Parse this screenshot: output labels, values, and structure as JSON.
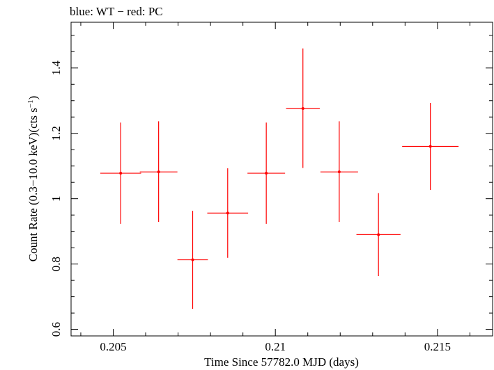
{
  "chart_data": {
    "type": "scatter",
    "title": "blue: WT − red: PC",
    "xlabel": "Time Since 57782.0 MJD (days)",
    "ylabel_main": "Count Rate (0.3−10.0 keV)(cts s",
    "ylabel_sup": "−1",
    "ylabel_close": ")",
    "xlim": [
      0.2037,
      0.2167
    ],
    "ylim": [
      0.58,
      1.54
    ],
    "xticks": [
      0.205,
      0.21,
      0.215
    ],
    "xtick_labels": [
      "0.205",
      "0.21",
      "0.215"
    ],
    "yticks": [
      0.6,
      0.8,
      1.0,
      1.2,
      1.4
    ],
    "ytick_labels": [
      "0.6",
      "0.8",
      "1",
      "1.2",
      "1.4"
    ],
    "grid": false,
    "series": [
      {
        "name": "PC",
        "color": "#ff0000",
        "points": [
          {
            "x": 0.20523,
            "xerr": 0.00063,
            "y": 1.078,
            "yerr_lo": 0.155,
            "yerr_hi": 0.155
          },
          {
            "x": 0.2064,
            "xerr": 0.00058,
            "y": 1.082,
            "yerr_lo": 0.153,
            "yerr_hi": 0.155
          },
          {
            "x": 0.20745,
            "xerr": 0.00047,
            "y": 0.813,
            "yerr_lo": 0.15,
            "yerr_hi": 0.15
          },
          {
            "x": 0.20853,
            "xerr": 0.00063,
            "y": 0.956,
            "yerr_lo": 0.137,
            "yerr_hi": 0.137
          },
          {
            "x": 0.20972,
            "xerr": 0.00058,
            "y": 1.078,
            "yerr_lo": 0.155,
            "yerr_hi": 0.155
          },
          {
            "x": 0.21085,
            "xerr": 0.00052,
            "y": 1.276,
            "yerr_lo": 0.182,
            "yerr_hi": 0.184
          },
          {
            "x": 0.21197,
            "xerr": 0.00058,
            "y": 1.082,
            "yerr_lo": 0.153,
            "yerr_hi": 0.155
          },
          {
            "x": 0.21318,
            "xerr": 0.00068,
            "y": 0.89,
            "yerr_lo": 0.127,
            "yerr_hi": 0.127
          },
          {
            "x": 0.21478,
            "xerr": 0.00087,
            "y": 1.16,
            "yerr_lo": 0.133,
            "yerr_hi": 0.133
          }
        ]
      }
    ]
  }
}
